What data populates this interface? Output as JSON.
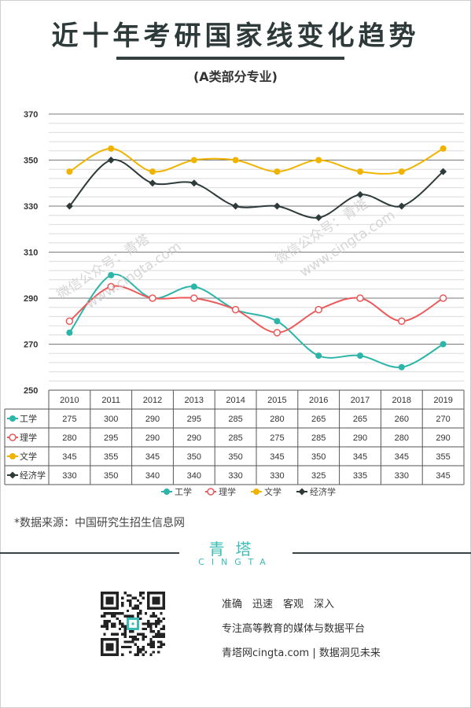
{
  "header": {
    "title": "近十年考研国家线变化趋势",
    "subtitle": "(A类部分专业)"
  },
  "watermarks": [
    "微信公众号：青塔",
    "www.cingta.com",
    "微信公众号：青塔",
    "www.cingta.com"
  ],
  "chart_data": {
    "type": "line",
    "categories": [
      "2010",
      "2011",
      "2012",
      "2013",
      "2014",
      "2015",
      "2016",
      "2017",
      "2018",
      "2019"
    ],
    "ylim": [
      250,
      370
    ],
    "yticks": [
      250,
      270,
      290,
      310,
      330,
      350,
      370
    ],
    "grid": true,
    "legend_position": "bottom",
    "series": [
      {
        "name": "工学",
        "color": "#2cb5a8",
        "marker": "filled-circle",
        "values": [
          275,
          300,
          290,
          295,
          285,
          280,
          265,
          265,
          260,
          270
        ]
      },
      {
        "name": "理学",
        "color": "#ea5a5a",
        "marker": "open-circle",
        "values": [
          280,
          295,
          290,
          290,
          285,
          275,
          285,
          290,
          280,
          290
        ]
      },
      {
        "name": "文学",
        "color": "#f0b400",
        "marker": "filled-circle",
        "values": [
          345,
          355,
          345,
          350,
          350,
          345,
          350,
          345,
          345,
          355
        ]
      },
      {
        "name": "经济学",
        "color": "#2f3b3b",
        "marker": "filled-diamond",
        "values": [
          330,
          350,
          340,
          340,
          330,
          330,
          325,
          335,
          330,
          345
        ]
      }
    ]
  },
  "footer": {
    "source": "*数据来源：中国研究生招生信息网",
    "brand_cn": "青塔",
    "brand_en": "CINGTA",
    "slogans": [
      "准确　迅速　客观　深入",
      "专注高等教育的媒体与数据平台",
      "青塔网cingta.com | 数据洞见未来"
    ]
  }
}
